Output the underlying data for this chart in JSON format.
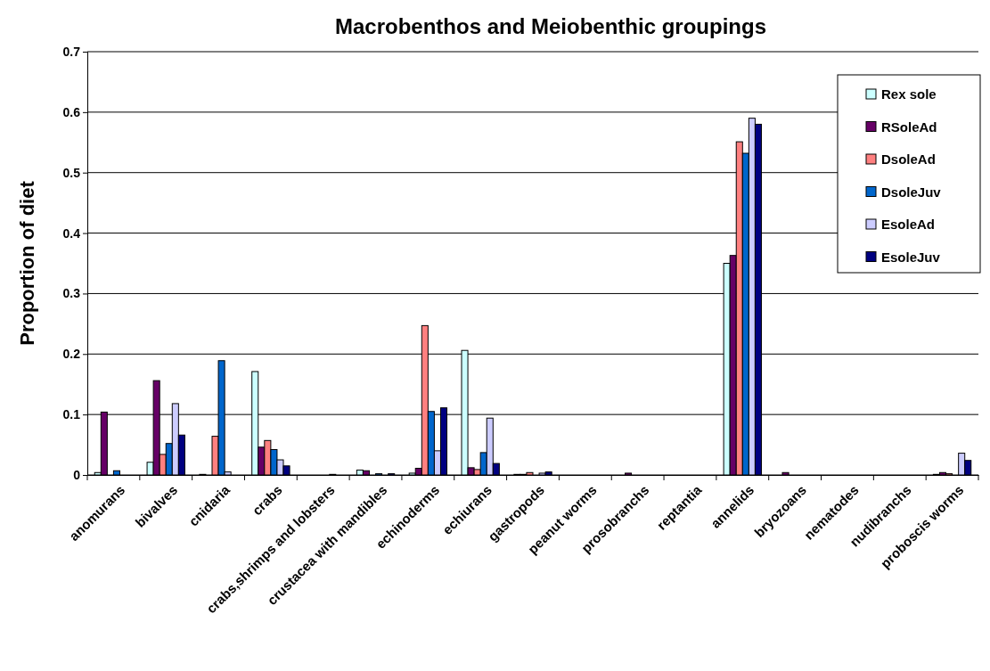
{
  "chart_data": {
    "type": "bar",
    "title": "Macrobenthos and Meiobenthic groupings",
    "ylabel": "Proportion of diet",
    "categories": [
      "anomurans",
      "bivalves",
      "cnidaria",
      "crabs",
      "crabs,shrimps and lobsters",
      "crustacea with mandibles",
      "echinoderms",
      "echiurans",
      "gastropods",
      "peanut worms",
      "prosobranchs",
      "reptantia",
      "annelids",
      "bryozoans",
      "nematodes",
      "nudibranchs",
      "proboscis worms"
    ],
    "series": [
      {
        "name": "Rex sole",
        "color": "#ccffff",
        "values": [
          0.004,
          0.021,
          0.001,
          0.171,
          0,
          0.008,
          0.003,
          0.206,
          0.001,
          0,
          0,
          0,
          0.35,
          0,
          0,
          0,
          0.001
        ]
      },
      {
        "name": "RSoleAd",
        "color": "#660066",
        "values": [
          0.104,
          0.156,
          0,
          0.046,
          0,
          0.007,
          0.011,
          0.012,
          0.001,
          0,
          0.003,
          0,
          0.363,
          0.004,
          0,
          0,
          0.004
        ]
      },
      {
        "name": "DsoleAd",
        "color": "#ff8080",
        "values": [
          0,
          0.034,
          0.064,
          0.057,
          0,
          null,
          0.247,
          0.009,
          0.004,
          0,
          null,
          0,
          0.551,
          0,
          0,
          0,
          0.002
        ]
      },
      {
        "name": "DsoleJuv",
        "color": "#0066cc",
        "values": [
          0.007,
          0.052,
          0.189,
          0.042,
          0,
          0.002,
          0.105,
          0.037,
          null,
          0,
          0,
          0,
          0.532,
          0,
          0,
          0,
          null
        ]
      },
      {
        "name": "EsoleAd",
        "color": "#ccccff",
        "values": [
          0,
          0.118,
          0.005,
          0.025,
          0.001,
          null,
          0.04,
          0.094,
          0.003,
          0,
          0,
          0,
          0.59,
          0,
          0,
          0,
          0.036
        ]
      },
      {
        "name": "EsoleJuv",
        "color": "#000080",
        "values": [
          0,
          0.066,
          0,
          0.015,
          0,
          0.002,
          0.111,
          0.019,
          0.005,
          0,
          0,
          0,
          0.58,
          0,
          0,
          0,
          0.024
        ]
      }
    ],
    "ylim": [
      0,
      0.7
    ],
    "yticks": [
      0,
      0.1,
      0.2,
      0.3,
      0.4,
      0.5,
      0.6,
      0.7
    ],
    "grid": "y",
    "legend": "top right"
  }
}
